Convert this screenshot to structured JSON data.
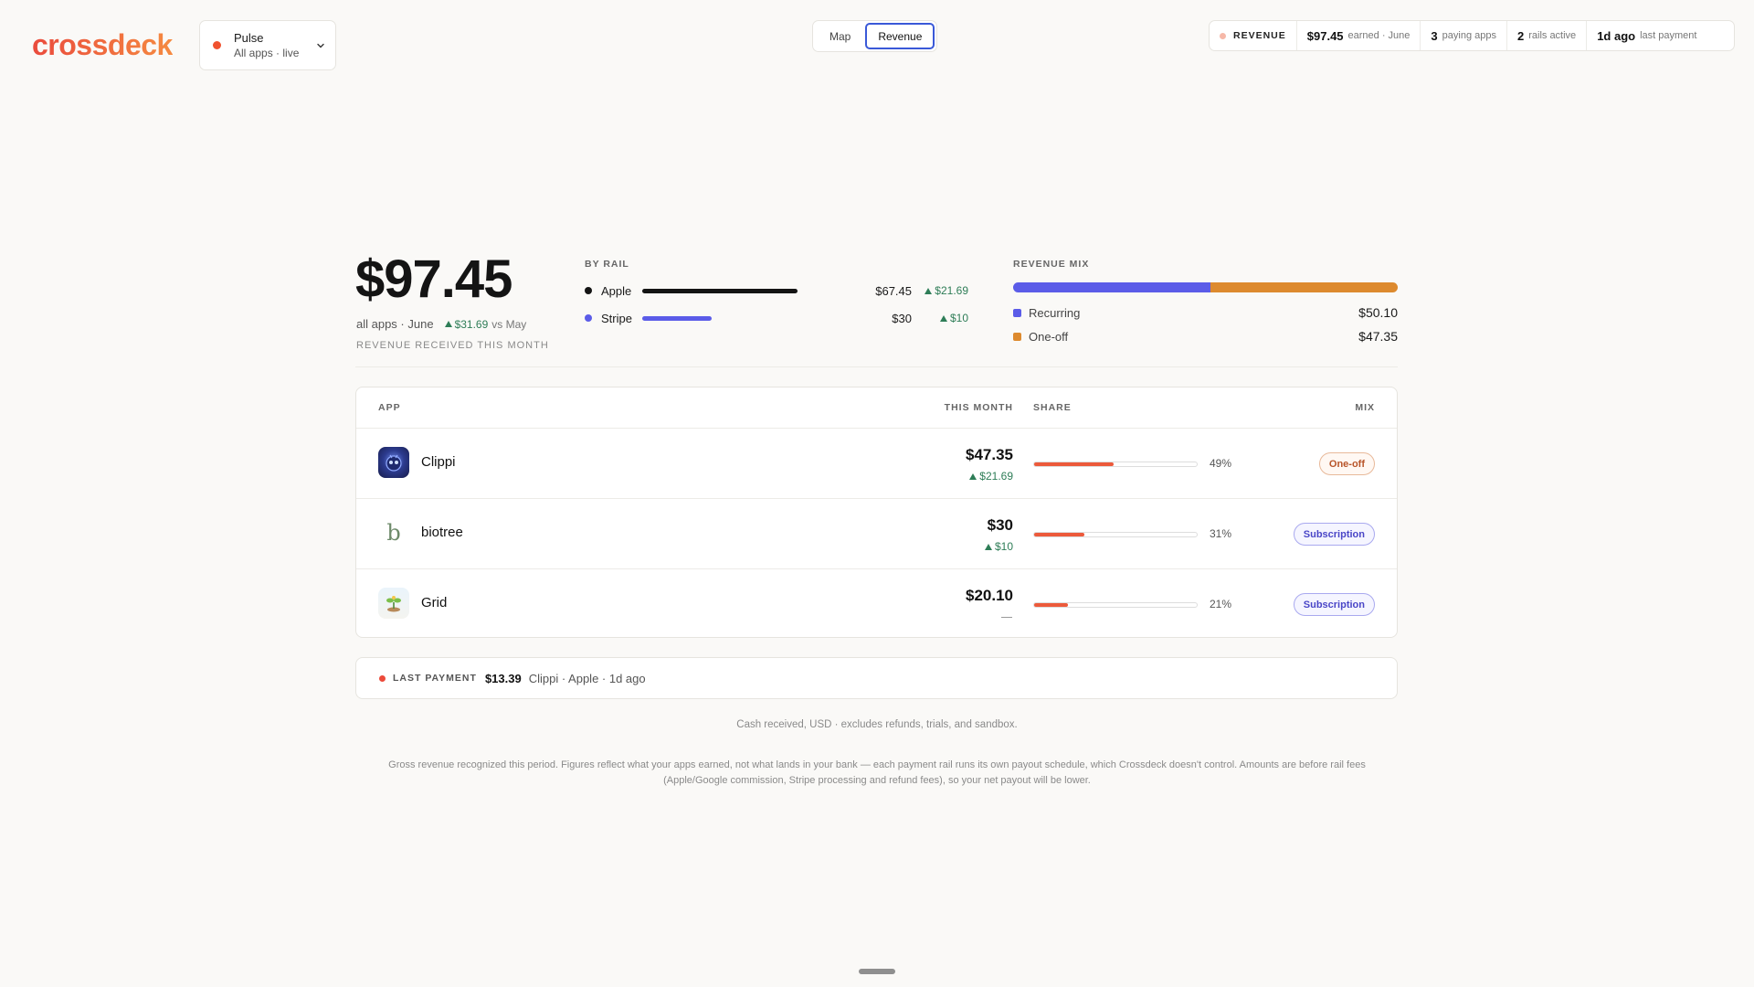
{
  "brand": {
    "logo": "crossdeck"
  },
  "workspace": {
    "title": "Pulse",
    "subtitle": "All apps · live"
  },
  "view_toggle": {
    "map_label": "Map",
    "revenue_label": "Revenue",
    "active": "Revenue"
  },
  "stats": {
    "label": "REVENUE",
    "earned_value": "$97.45",
    "earned_text": "earned · June",
    "paying_value": "3",
    "paying_text": "paying apps",
    "rails_value": "2",
    "rails_text": "rails active",
    "last_value": "1d ago",
    "last_text": "last payment"
  },
  "summary": {
    "total": "$97.45",
    "scope": "all apps · June",
    "delta": "$31.69",
    "delta_suffix": "vs May",
    "caption": "REVENUE RECEIVED THIS MONTH"
  },
  "by_rail": {
    "label": "BY RAIL",
    "rails": [
      {
        "name": "Apple",
        "amount": "$67.45",
        "delta": "$21.69",
        "share": 0.692,
        "color": "#141414"
      },
      {
        "name": "Stripe",
        "amount": "$30",
        "delta": "$10",
        "share": 0.308,
        "color": "#5b5ce8"
      }
    ]
  },
  "revenue_mix": {
    "label": "REVENUE MIX",
    "items": [
      {
        "name": "Recurring",
        "value": "$50.10",
        "share": 0.514,
        "color": "#5b5ce8"
      },
      {
        "name": "One-off",
        "value": "$47.35",
        "share": 0.486,
        "color": "#dd8a2e"
      }
    ]
  },
  "table": {
    "headers": {
      "app": "APP",
      "month": "THIS MONTH",
      "share": "SHARE",
      "mix": "MIX"
    },
    "rows": [
      {
        "name": "Clippi",
        "amount": "$47.35",
        "delta": "$21.69",
        "share": 0.49,
        "share_label": "49%",
        "mix": "One-off",
        "icon": "clippi-app-icon"
      },
      {
        "name": "biotree",
        "amount": "$30",
        "delta": "$10",
        "share": 0.31,
        "share_label": "31%",
        "mix": "Subscription",
        "icon": "biotree-app-icon",
        "glyph": "b"
      },
      {
        "name": "Grid",
        "amount": "$20.10",
        "delta": "",
        "share": 0.21,
        "share_label": "21%",
        "mix": "Subscription",
        "icon": "grid-app-icon"
      }
    ]
  },
  "last_payment": {
    "label": "LAST PAYMENT",
    "amount": "$13.39",
    "meta": "Clippi · Apple · 1d ago"
  },
  "footnote": "Cash received, USD · excludes refunds, trials, and sandbox.",
  "disclaimer": "Gross revenue recognized this period. Figures reflect what your apps earned, not what lands in your bank — each payment rail runs its own payout schedule, which Crossdeck doesn't control. Amounts are before rail fees (Apple/Google commission, Stripe processing and refund fees), so your net payout will be lower."
}
